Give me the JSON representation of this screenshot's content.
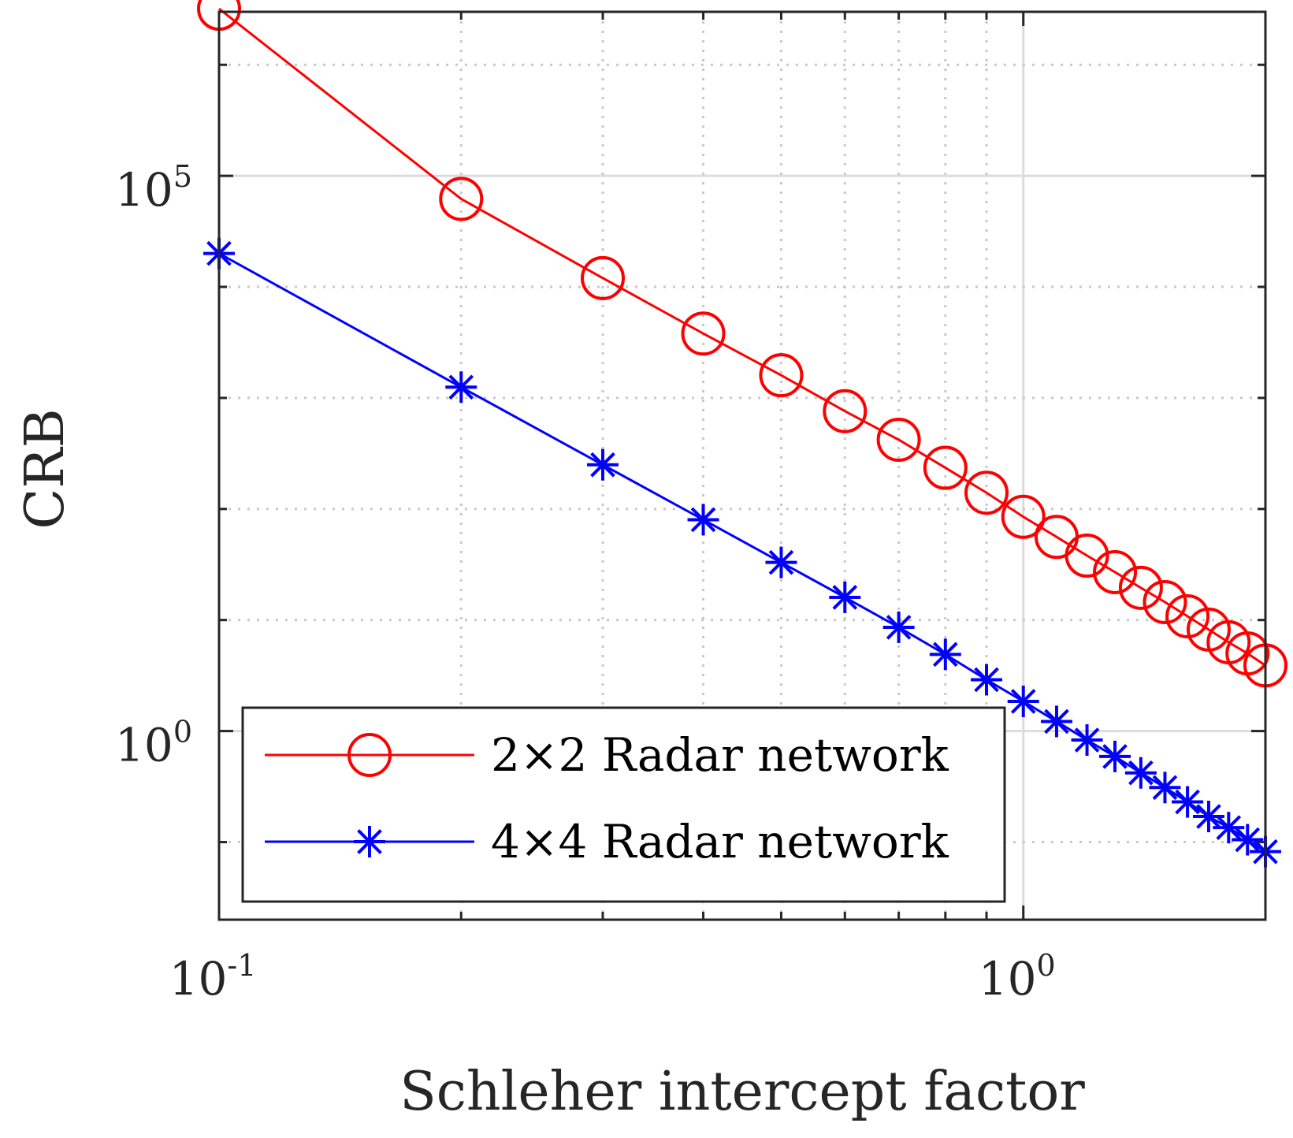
{
  "chart_data": {
    "type": "line",
    "title": "",
    "xlabel": "Schleher intercept factor",
    "ylabel": "CRB",
    "x_scale": "log",
    "y_scale": "log",
    "xlim": [
      0.1,
      2
    ],
    "ylim": [
      0.02,
      3000000
    ],
    "grid": true,
    "legend_position": "bottom-left",
    "x_ticks": [
      {
        "base": "10",
        "exp": "-1",
        "value": 0.1
      },
      {
        "base": "10",
        "exp": "0",
        "value": 1
      }
    ],
    "y_ticks": [
      {
        "base": "10",
        "exp": "0",
        "value": 1
      },
      {
        "base": "10",
        "exp": "5",
        "value": 100000
      }
    ],
    "x": [
      0.1,
      0.2,
      0.3,
      0.4,
      0.5,
      0.6,
      0.7,
      0.8,
      0.9,
      1.0,
      1.1,
      1.2,
      1.3,
      1.4,
      1.5,
      1.6,
      1.7,
      1.8,
      1.9,
      2.0
    ],
    "series": [
      {
        "name": "2×2 Radar network",
        "color": "#ff0000",
        "marker": "circle",
        "values": [
          3200000,
          62000,
          12000,
          3800,
          1600,
          760,
          420,
          235,
          140,
          85,
          56,
          38,
          27,
          19.5,
          14.5,
          10.8,
          8.2,
          6.3,
          5.0,
          3.9
        ]
      },
      {
        "name": "4×4 Radar network",
        "color": "#0000ff",
        "marker": "asterisk",
        "values": [
          20000,
          1250,
          250,
          80,
          33,
          16,
          8.6,
          4.9,
          2.9,
          1.85,
          1.22,
          0.83,
          0.59,
          0.42,
          0.31,
          0.23,
          0.17,
          0.135,
          0.105,
          0.082
        ]
      }
    ]
  }
}
